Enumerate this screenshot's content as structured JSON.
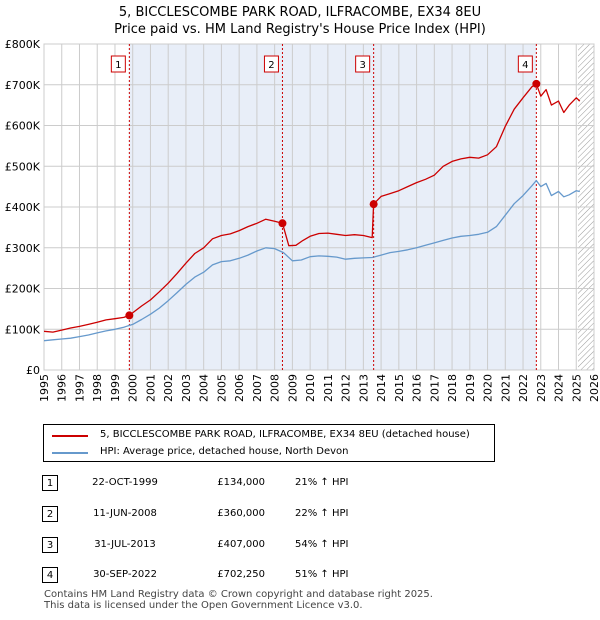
{
  "title_line1": "5, BICCLESCOMBE PARK ROAD, ILFRACOMBE, EX34 8EU",
  "title_line2": "Price paid vs. HM Land Registry's House Price Index (HPI)",
  "colors": {
    "property": "#cc0000",
    "hpi": "#6699cc",
    "shade": "#e8eef8"
  },
  "legend": {
    "property": "5, BICCLESCOMBE PARK ROAD, ILFRACOMBE, EX34 8EU (detached house)",
    "hpi": "HPI: Average price, detached house, North Devon"
  },
  "transactions": [
    {
      "num": "1",
      "date": "22-OCT-1999",
      "price": "£134,000",
      "hpi": "21% ↑ HPI"
    },
    {
      "num": "2",
      "date": "11-JUN-2008",
      "price": "£360,000",
      "hpi": "22% ↑ HPI"
    },
    {
      "num": "3",
      "date": "31-JUL-2013",
      "price": "£407,000",
      "hpi": "54% ↑ HPI"
    },
    {
      "num": "4",
      "date": "30-SEP-2022",
      "price": "£702,250",
      "hpi": "51% ↑ HPI"
    }
  ],
  "footer": "Contains HM Land Registry data © Crown copyright and database right 2025.\nThis data is licensed under the Open Government Licence v3.0.",
  "chart_data": {
    "type": "line",
    "ylim": [
      0,
      800000
    ],
    "xlim": [
      1995,
      2026
    ],
    "y_ticks": [
      {
        "value": 0,
        "label": "£0"
      },
      {
        "value": 100000,
        "label": "£100K"
      },
      {
        "value": 200000,
        "label": "£200K"
      },
      {
        "value": 300000,
        "label": "£300K"
      },
      {
        "value": 400000,
        "label": "£400K"
      },
      {
        "value": 500000,
        "label": "£500K"
      },
      {
        "value": 600000,
        "label": "£600K"
      },
      {
        "value": 700000,
        "label": "£700K"
      },
      {
        "value": 800000,
        "label": "£800K"
      }
    ],
    "x_ticks": [
      "1995",
      "1996",
      "1997",
      "1998",
      "1999",
      "2000",
      "2001",
      "2002",
      "2003",
      "2004",
      "2005",
      "2006",
      "2007",
      "2008",
      "2009",
      "2010",
      "2011",
      "2012",
      "2013",
      "2014",
      "2015",
      "2016",
      "2017",
      "2018",
      "2019",
      "2020",
      "2021",
      "2022",
      "2023",
      "2024",
      "2025",
      "2026"
    ],
    "grid": true,
    "shaded_period": [
      1999.81,
      2022.75
    ],
    "hatched_from": 2025.1,
    "sales": [
      {
        "label": "1",
        "x": 1999.81,
        "y": 134000
      },
      {
        "label": "2",
        "x": 2008.44,
        "y": 360000
      },
      {
        "label": "3",
        "x": 2013.58,
        "y": 407000
      },
      {
        "label": "4",
        "x": 2022.75,
        "y": 702250
      }
    ],
    "series": [
      {
        "name": "5, BICCLESCOMBE PARK ROAD, ILFRACOMBE, EX34 8EU (detached house)",
        "x": [
          1995.0,
          1995.5,
          1996.0,
          1996.5,
          1997.0,
          1997.5,
          1998.0,
          1998.5,
          1999.0,
          1999.5,
          1999.81,
          2000.5,
          2001.0,
          2001.5,
          2002.0,
          2002.5,
          2003.0,
          2003.5,
          2004.0,
          2004.5,
          2005.0,
          2005.5,
          2006.0,
          2006.5,
          2007.0,
          2007.5,
          2008.0,
          2008.44,
          2008.8,
          2009.2,
          2009.6,
          2010.0,
          2010.5,
          2011.0,
          2011.5,
          2012.0,
          2012.5,
          2013.0,
          2013.5,
          2013.58,
          2014.0,
          2014.5,
          2015.0,
          2015.5,
          2016.0,
          2016.5,
          2017.0,
          2017.5,
          2018.0,
          2018.5,
          2019.0,
          2019.5,
          2020.0,
          2020.5,
          2021.0,
          2021.5,
          2022.0,
          2022.5,
          2022.75,
          2023.0,
          2023.3,
          2023.6,
          2024.0,
          2024.3,
          2024.6,
          2025.0,
          2025.2
        ],
        "y": [
          95000,
          93000,
          98000,
          103000,
          107000,
          112000,
          117000,
          123000,
          126000,
          129000,
          134000,
          157000,
          172000,
          192000,
          213000,
          237000,
          262000,
          286000,
          300000,
          322000,
          330000,
          334000,
          342000,
          352000,
          360000,
          370000,
          365000,
          360000,
          305000,
          306000,
          318000,
          328000,
          335000,
          336000,
          333000,
          330000,
          332000,
          330000,
          325000,
          407000,
          426000,
          433000,
          440000,
          450000,
          460000,
          468000,
          478000,
          500000,
          512000,
          518000,
          522000,
          520000,
          528000,
          548000,
          598000,
          640000,
          668000,
          695000,
          702250,
          672000,
          688000,
          650000,
          660000,
          632000,
          650000,
          668000,
          660000
        ]
      },
      {
        "name": "HPI: Average price, detached house, North Devon",
        "x": [
          1995.0,
          1995.5,
          1996.0,
          1996.5,
          1997.0,
          1997.5,
          1998.0,
          1998.5,
          1999.0,
          1999.5,
          2000.0,
          2000.5,
          2001.0,
          2001.5,
          2002.0,
          2002.5,
          2003.0,
          2003.5,
          2004.0,
          2004.5,
          2005.0,
          2005.5,
          2006.0,
          2006.5,
          2007.0,
          2007.5,
          2008.0,
          2008.5,
          2009.0,
          2009.5,
          2010.0,
          2010.5,
          2011.0,
          2011.5,
          2012.0,
          2012.5,
          2013.0,
          2013.5,
          2014.0,
          2014.5,
          2015.0,
          2015.5,
          2016.0,
          2016.5,
          2017.0,
          2017.5,
          2018.0,
          2018.5,
          2019.0,
          2019.5,
          2020.0,
          2020.5,
          2021.0,
          2021.5,
          2022.0,
          2022.5,
          2022.75,
          2023.0,
          2023.3,
          2023.6,
          2024.0,
          2024.3,
          2024.6,
          2025.0,
          2025.2
        ],
        "y": [
          72000,
          74000,
          76000,
          78000,
          82000,
          86000,
          91000,
          96000,
          100000,
          105000,
          112000,
          124000,
          137000,
          152000,
          170000,
          190000,
          210000,
          228000,
          240000,
          258000,
          266000,
          268000,
          274000,
          282000,
          292000,
          300000,
          298000,
          288000,
          268000,
          270000,
          278000,
          280000,
          279000,
          277000,
          272000,
          274000,
          275000,
          276000,
          282000,
          288000,
          291000,
          295000,
          300000,
          306000,
          312000,
          318000,
          324000,
          328000,
          330000,
          333000,
          338000,
          352000,
          380000,
          408000,
          428000,
          452000,
          465000,
          450000,
          458000,
          428000,
          438000,
          425000,
          430000,
          440000,
          438000
        ]
      }
    ]
  }
}
